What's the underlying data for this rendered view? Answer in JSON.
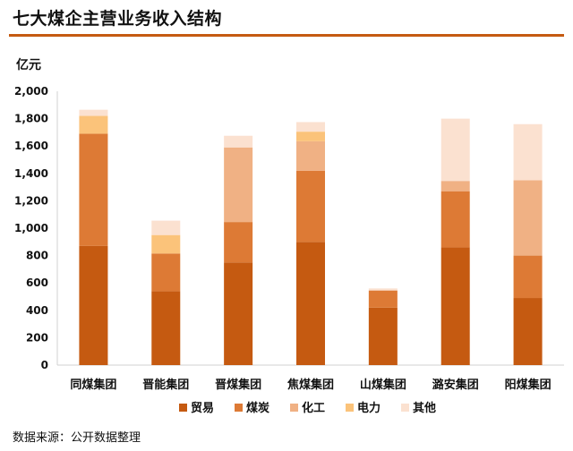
{
  "title": "七大煤企主营业务收入结构",
  "unit": "亿元",
  "source": "数据来源：公开数据整理",
  "chart_data": {
    "type": "bar",
    "stacked": true,
    "categories": [
      "同煤集团",
      "晋能集团",
      "晋煤集团",
      "焦煤集团",
      "山煤集团",
      "潞安集团",
      "阳煤集团"
    ],
    "series": [
      {
        "name": "贸易",
        "color": "#c55a11",
        "values": [
          870,
          540,
          750,
          900,
          420,
          860,
          490
        ]
      },
      {
        "name": "煤炭",
        "color": "#dd7a35",
        "values": [
          820,
          275,
          295,
          520,
          125,
          410,
          310
        ]
      },
      {
        "name": "化工",
        "color": "#f0b184",
        "values": [
          0,
          0,
          545,
          215,
          0,
          75,
          550
        ]
      },
      {
        "name": "电力",
        "color": "#fbc37a",
        "values": [
          130,
          135,
          0,
          70,
          0,
          0,
          0
        ]
      },
      {
        "name": "其他",
        "color": "#fbe1d0",
        "values": [
          45,
          105,
          85,
          70,
          15,
          455,
          410
        ]
      }
    ],
    "yticks": [
      "0",
      "200",
      "400",
      "600",
      "800",
      "1,000",
      "1,200",
      "1,400",
      "1,600",
      "1,800",
      "2,000"
    ],
    "ylim": [
      0,
      2000
    ],
    "legend_position": "bottom"
  }
}
